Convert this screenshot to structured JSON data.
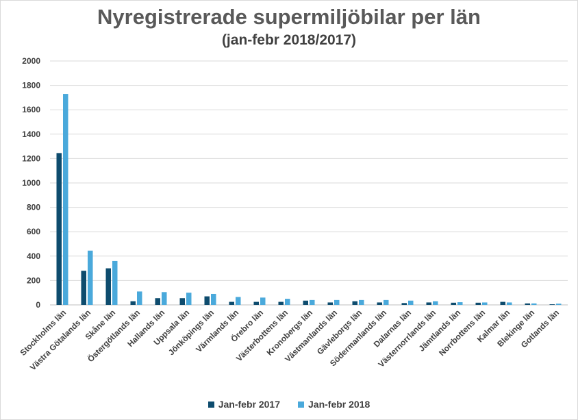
{
  "chart_data": {
    "type": "bar",
    "title": "Nyregistrerade supermiljöbilar per län",
    "subtitle": "(jan-febr 2018/2017)",
    "xlabel": "",
    "ylabel": "",
    "ylim": [
      0,
      2000
    ],
    "yticks": [
      0,
      200,
      400,
      600,
      800,
      1000,
      1200,
      1400,
      1600,
      1800,
      2000
    ],
    "grid": true,
    "legend_position": "bottom",
    "categories": [
      "Stockholms län",
      "Västra Götalands län",
      "Skåne län",
      "Östergötlands län",
      "Hallands län",
      "Uppsala län",
      "Jönköpings län",
      "Värmlands län",
      "Örebro län",
      "Västerbottens län",
      "Kronobergs län",
      "Västmanlands län",
      "Gävleborgs län",
      "Södermanlands län",
      "Dalarnas län",
      "Västernorrlands län",
      "Jämtlands län",
      "Norrbottens län",
      "Kalmar län",
      "Blekinge län",
      "Gotlands län"
    ],
    "series": [
      {
        "name": "Jan-febr 2017",
        "color": "#0e4c6e",
        "values": [
          1245,
          280,
          300,
          30,
          55,
          55,
          70,
          25,
          25,
          25,
          35,
          20,
          30,
          20,
          15,
          20,
          18,
          18,
          25,
          12,
          5
        ]
      },
      {
        "name": "Jan-febr 2018",
        "color": "#4aa9db",
        "values": [
          1730,
          445,
          360,
          110,
          105,
          100,
          90,
          65,
          60,
          50,
          40,
          40,
          40,
          40,
          35,
          30,
          22,
          20,
          20,
          12,
          10
        ]
      }
    ]
  }
}
